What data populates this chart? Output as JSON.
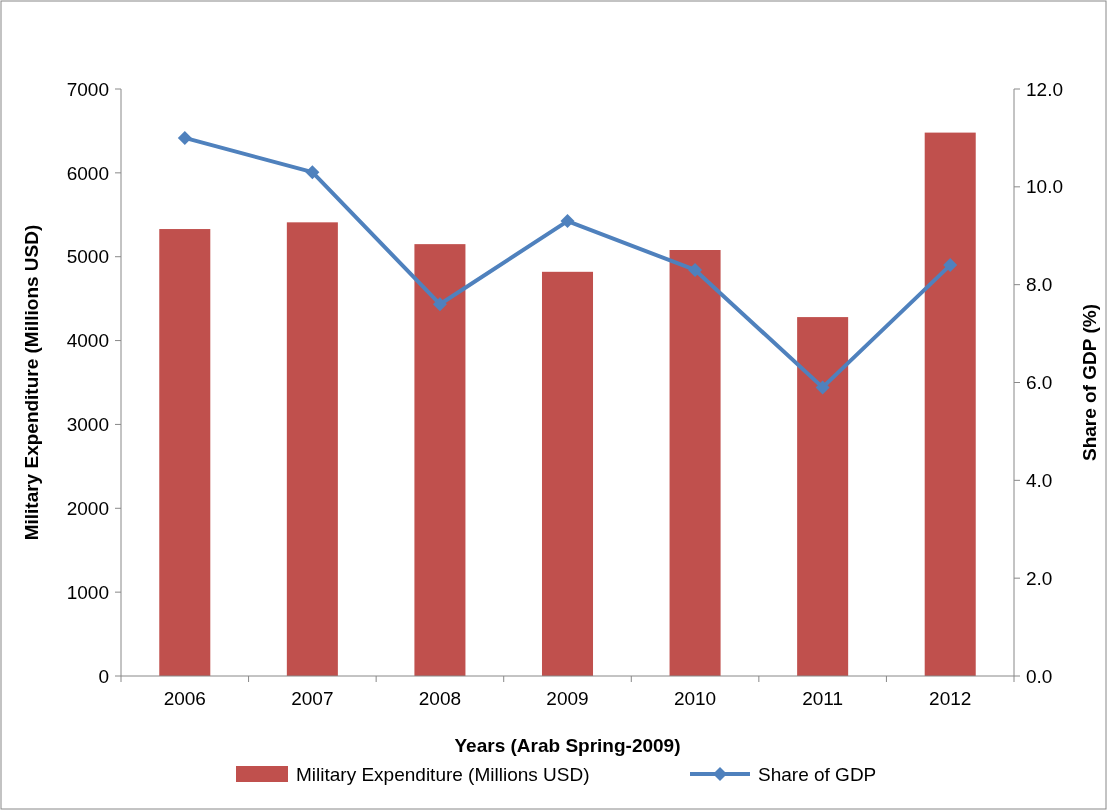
{
  "chart_data": {
    "type": "bar",
    "xlabel": "Years (Arab Spring-2009)",
    "ylabel": "Military Expenditure (Millions USD)",
    "y2label": "Share of GDP (%)",
    "categories": [
      "2006",
      "2007",
      "2008",
      "2009",
      "2010",
      "2011",
      "2012"
    ],
    "series": [
      {
        "name": "Military Expenditure (Millions USD)",
        "color": "#c0504d",
        "values": [
          5330,
          5410,
          5150,
          4820,
          5080,
          4280,
          6480
        ]
      },
      {
        "name": "Share of GDP",
        "type": "line",
        "axis": "y2",
        "color": "#4f81bd",
        "marker": "diamond",
        "values": [
          11.0,
          10.3,
          7.6,
          9.3,
          8.3,
          5.9,
          8.4
        ]
      }
    ],
    "ylim": [
      0,
      7000
    ],
    "yticks": [
      0,
      1000,
      2000,
      3000,
      4000,
      5000,
      6000,
      7000
    ],
    "y2lim": [
      0,
      12
    ],
    "y2ticks": [
      {
        "value": 0,
        "label": "0.0"
      },
      {
        "value": 2,
        "label": "2.0"
      },
      {
        "value": 4,
        "label": "4.0"
      },
      {
        "value": 6,
        "label": "6.0"
      },
      {
        "value": 8,
        "label": "8.0"
      },
      {
        "value": 10,
        "label": "10.0"
      },
      {
        "value": 12,
        "label": "12.0"
      }
    ],
    "grid": false,
    "legend": "bottom"
  }
}
